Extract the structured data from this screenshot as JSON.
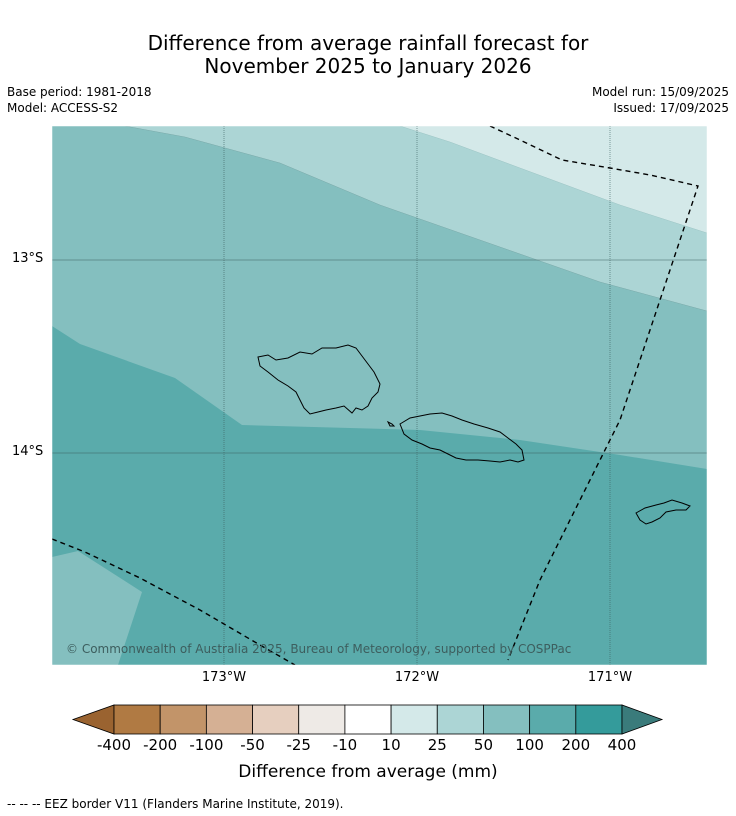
{
  "title_line1": "Difference from average rainfall forecast for",
  "title_line2": "November 2025 to January 2026",
  "base_period": "Base period: 1981-2018",
  "model": "Model: ACCESS-S2",
  "model_run": "Model run: 15/09/2025",
  "issued": "Issued: 17/09/2025",
  "map": {
    "lat_labels": [
      "13°S",
      "14°S"
    ],
    "lon_labels": [
      "173°W",
      "172°W",
      "171°W"
    ],
    "copyright": "© Commonwealth of Australia 2025, Bureau of Meteorology, supported by COSPPac",
    "region_colors": {
      "100-200": "#5aabab",
      "50-100": "#84bfbf",
      "25-50": "#acd5d5",
      "10-25": "#d4e9e9"
    }
  },
  "colorbar": {
    "title": "Difference from average (mm)",
    "ticks": [
      "-400",
      "-200",
      "-100",
      "-50",
      "-25",
      "-10",
      "10",
      "25",
      "50",
      "100",
      "200",
      "400"
    ],
    "colors": [
      "#9a6330",
      "#b07a43",
      "#c29469",
      "#d5b094",
      "#e6cfbf",
      "#eeeae6",
      "#ffffff",
      "#d4e9e9",
      "#acd5d5",
      "#84bfbf",
      "#5aabab",
      "#349b9b",
      "#3a7b7b"
    ]
  },
  "eez_note": "--  --  -- EEZ border V11 (Flanders Marine Institute, 2019)."
}
